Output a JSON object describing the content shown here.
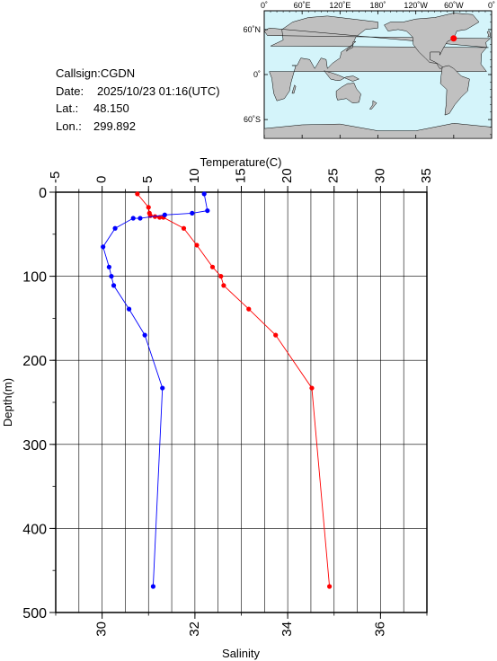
{
  "station": {
    "callsign_label": "Callsign:",
    "callsign": "CGDN",
    "date_label": "Date:",
    "date": "2025/10/23 01:16(UTC)",
    "lat_label": "Lat.:",
    "lat": "48.150",
    "lon_label": "Lon.:",
    "lon": "299.892"
  },
  "map": {
    "lon_ticks": [
      "0˚",
      "60˚E",
      "120˚E",
      "180˚",
      "120˚W",
      "60˚W",
      "0˚"
    ],
    "lat_ticks": [
      "60˚N",
      "0˚",
      "60˚S"
    ],
    "ocean_color": "#d4f4fa",
    "land_color": "#c0c0c0",
    "marker_color": "#ff0000",
    "marker": {
      "lon": 299.892,
      "lat": 48.15
    }
  },
  "chart_data": {
    "type": "line",
    "title": "",
    "ylabel": "Depth(m)",
    "ylim": [
      0,
      500
    ],
    "y_reversed": true,
    "yticks": [
      0,
      100,
      200,
      300,
      400,
      500
    ],
    "top_axis": {
      "label": "Temperature(C)",
      "lim": [
        -5,
        35
      ],
      "ticks": [
        -5,
        0,
        5,
        10,
        15,
        20,
        25,
        30,
        35
      ]
    },
    "bottom_axis": {
      "label": "Salinity",
      "lim": [
        29,
        37
      ],
      "ticks": [
        30,
        32,
        34,
        36
      ]
    },
    "grid": true,
    "series": [
      {
        "name": "",
        "axis": "top",
        "color": "#ff0000",
        "points": [
          [
            3.8,
            2
          ],
          [
            5.0,
            18
          ],
          [
            5.1,
            25
          ],
          [
            5.2,
            28
          ],
          [
            5.7,
            29
          ],
          [
            6.2,
            30
          ],
          [
            6.6,
            30
          ],
          [
            8.8,
            43
          ],
          [
            10.2,
            63
          ],
          [
            11.9,
            89
          ],
          [
            12.8,
            100
          ],
          [
            13.1,
            111
          ],
          [
            15.8,
            139
          ],
          [
            18.7,
            170
          ],
          [
            22.6,
            233
          ],
          [
            24.5,
            469
          ]
        ]
      },
      {
        "name": "",
        "axis": "bottom",
        "color": "#0000ff",
        "points": [
          [
            32.2,
            2
          ],
          [
            32.27,
            22
          ],
          [
            31.94,
            25
          ],
          [
            31.35,
            27
          ],
          [
            30.82,
            31
          ],
          [
            30.67,
            31
          ],
          [
            30.28,
            43
          ],
          [
            30.02,
            65
          ],
          [
            30.15,
            89
          ],
          [
            30.2,
            100
          ],
          [
            30.25,
            111
          ],
          [
            30.58,
            139
          ],
          [
            30.92,
            170
          ],
          [
            31.3,
            233
          ],
          [
            31.1,
            469
          ]
        ]
      }
    ]
  }
}
